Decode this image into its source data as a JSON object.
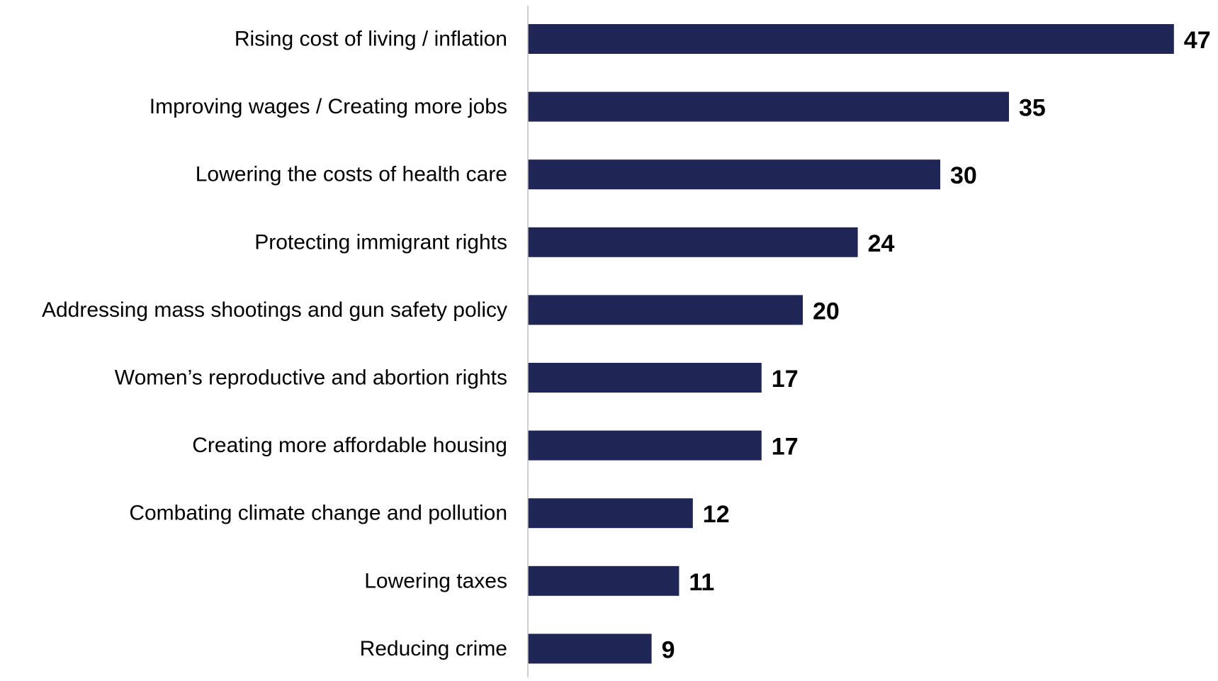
{
  "chart_data": {
    "type": "bar",
    "orientation": "horizontal",
    "categories": [
      "Rising cost of living / inflation",
      "Improving wages / Creating more jobs",
      "Lowering the costs of health care",
      "Protecting immigrant rights",
      "Addressing mass shootings and gun safety policy",
      "Women’s reproductive and abortion rights",
      "Creating more affordable housing",
      "Combating climate change and pollution",
      "Lowering taxes",
      "Reducing crime"
    ],
    "values": [
      47,
      35,
      30,
      24,
      20,
      17,
      17,
      12,
      11,
      9
    ],
    "data_labels": [
      "47",
      "35",
      "30",
      "24",
      "20",
      "17",
      "17",
      "12",
      "11",
      "9"
    ],
    "title": "",
    "xlabel": "",
    "ylabel": "",
    "xlim": [
      0,
      47
    ],
    "grid": false,
    "legend": "none",
    "colors": {
      "bar": "#1f2554",
      "axis": "#bfbfbf",
      "text": "#000000"
    }
  }
}
